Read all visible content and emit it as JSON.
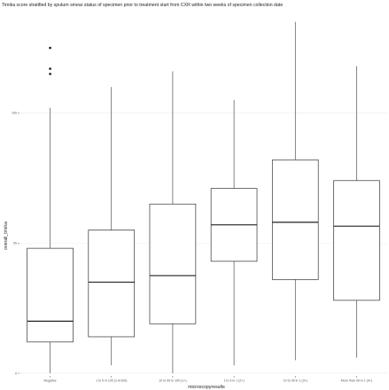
{
  "chart_data": {
    "type": "boxplot",
    "title": "Timika score stratified by sputum smear status of specimen prior to treatment start from CXR within two weeks of specimen collection date",
    "xlabel": "microscopyresults",
    "ylabel": "overall_timika",
    "ylim": [
      -1,
      140
    ],
    "yticks": [
      0,
      50,
      100
    ],
    "grid": true,
    "categories": [
      "Negative",
      "1 to 9 in 100 (1-9/100)",
      "10 to 99 in 100 (1+)",
      "1 to 9 in 1 (2+)",
      "10 to 99 in 1 (3+)",
      "More than 99 in 1 (4+)"
    ],
    "boxes": [
      {
        "min": 0,
        "q1": 12,
        "median": 20,
        "q3": 48,
        "max": 102,
        "outliers": [
          115,
          117,
          125
        ]
      },
      {
        "min": 3,
        "q1": 14,
        "median": 35,
        "q3": 55,
        "max": 110,
        "outliers": []
      },
      {
        "min": 0,
        "q1": 19,
        "median": 37.5,
        "q3": 65,
        "max": 116,
        "outliers": []
      },
      {
        "min": 3,
        "q1": 43,
        "median": 57,
        "q3": 71,
        "max": 105,
        "outliers": []
      },
      {
        "min": 5,
        "q1": 36,
        "median": 58,
        "q3": 82,
        "max": 135,
        "outliers": []
      },
      {
        "min": 6,
        "q1": 28,
        "median": 56.5,
        "q3": 74,
        "max": 118,
        "outliers": []
      }
    ]
  }
}
